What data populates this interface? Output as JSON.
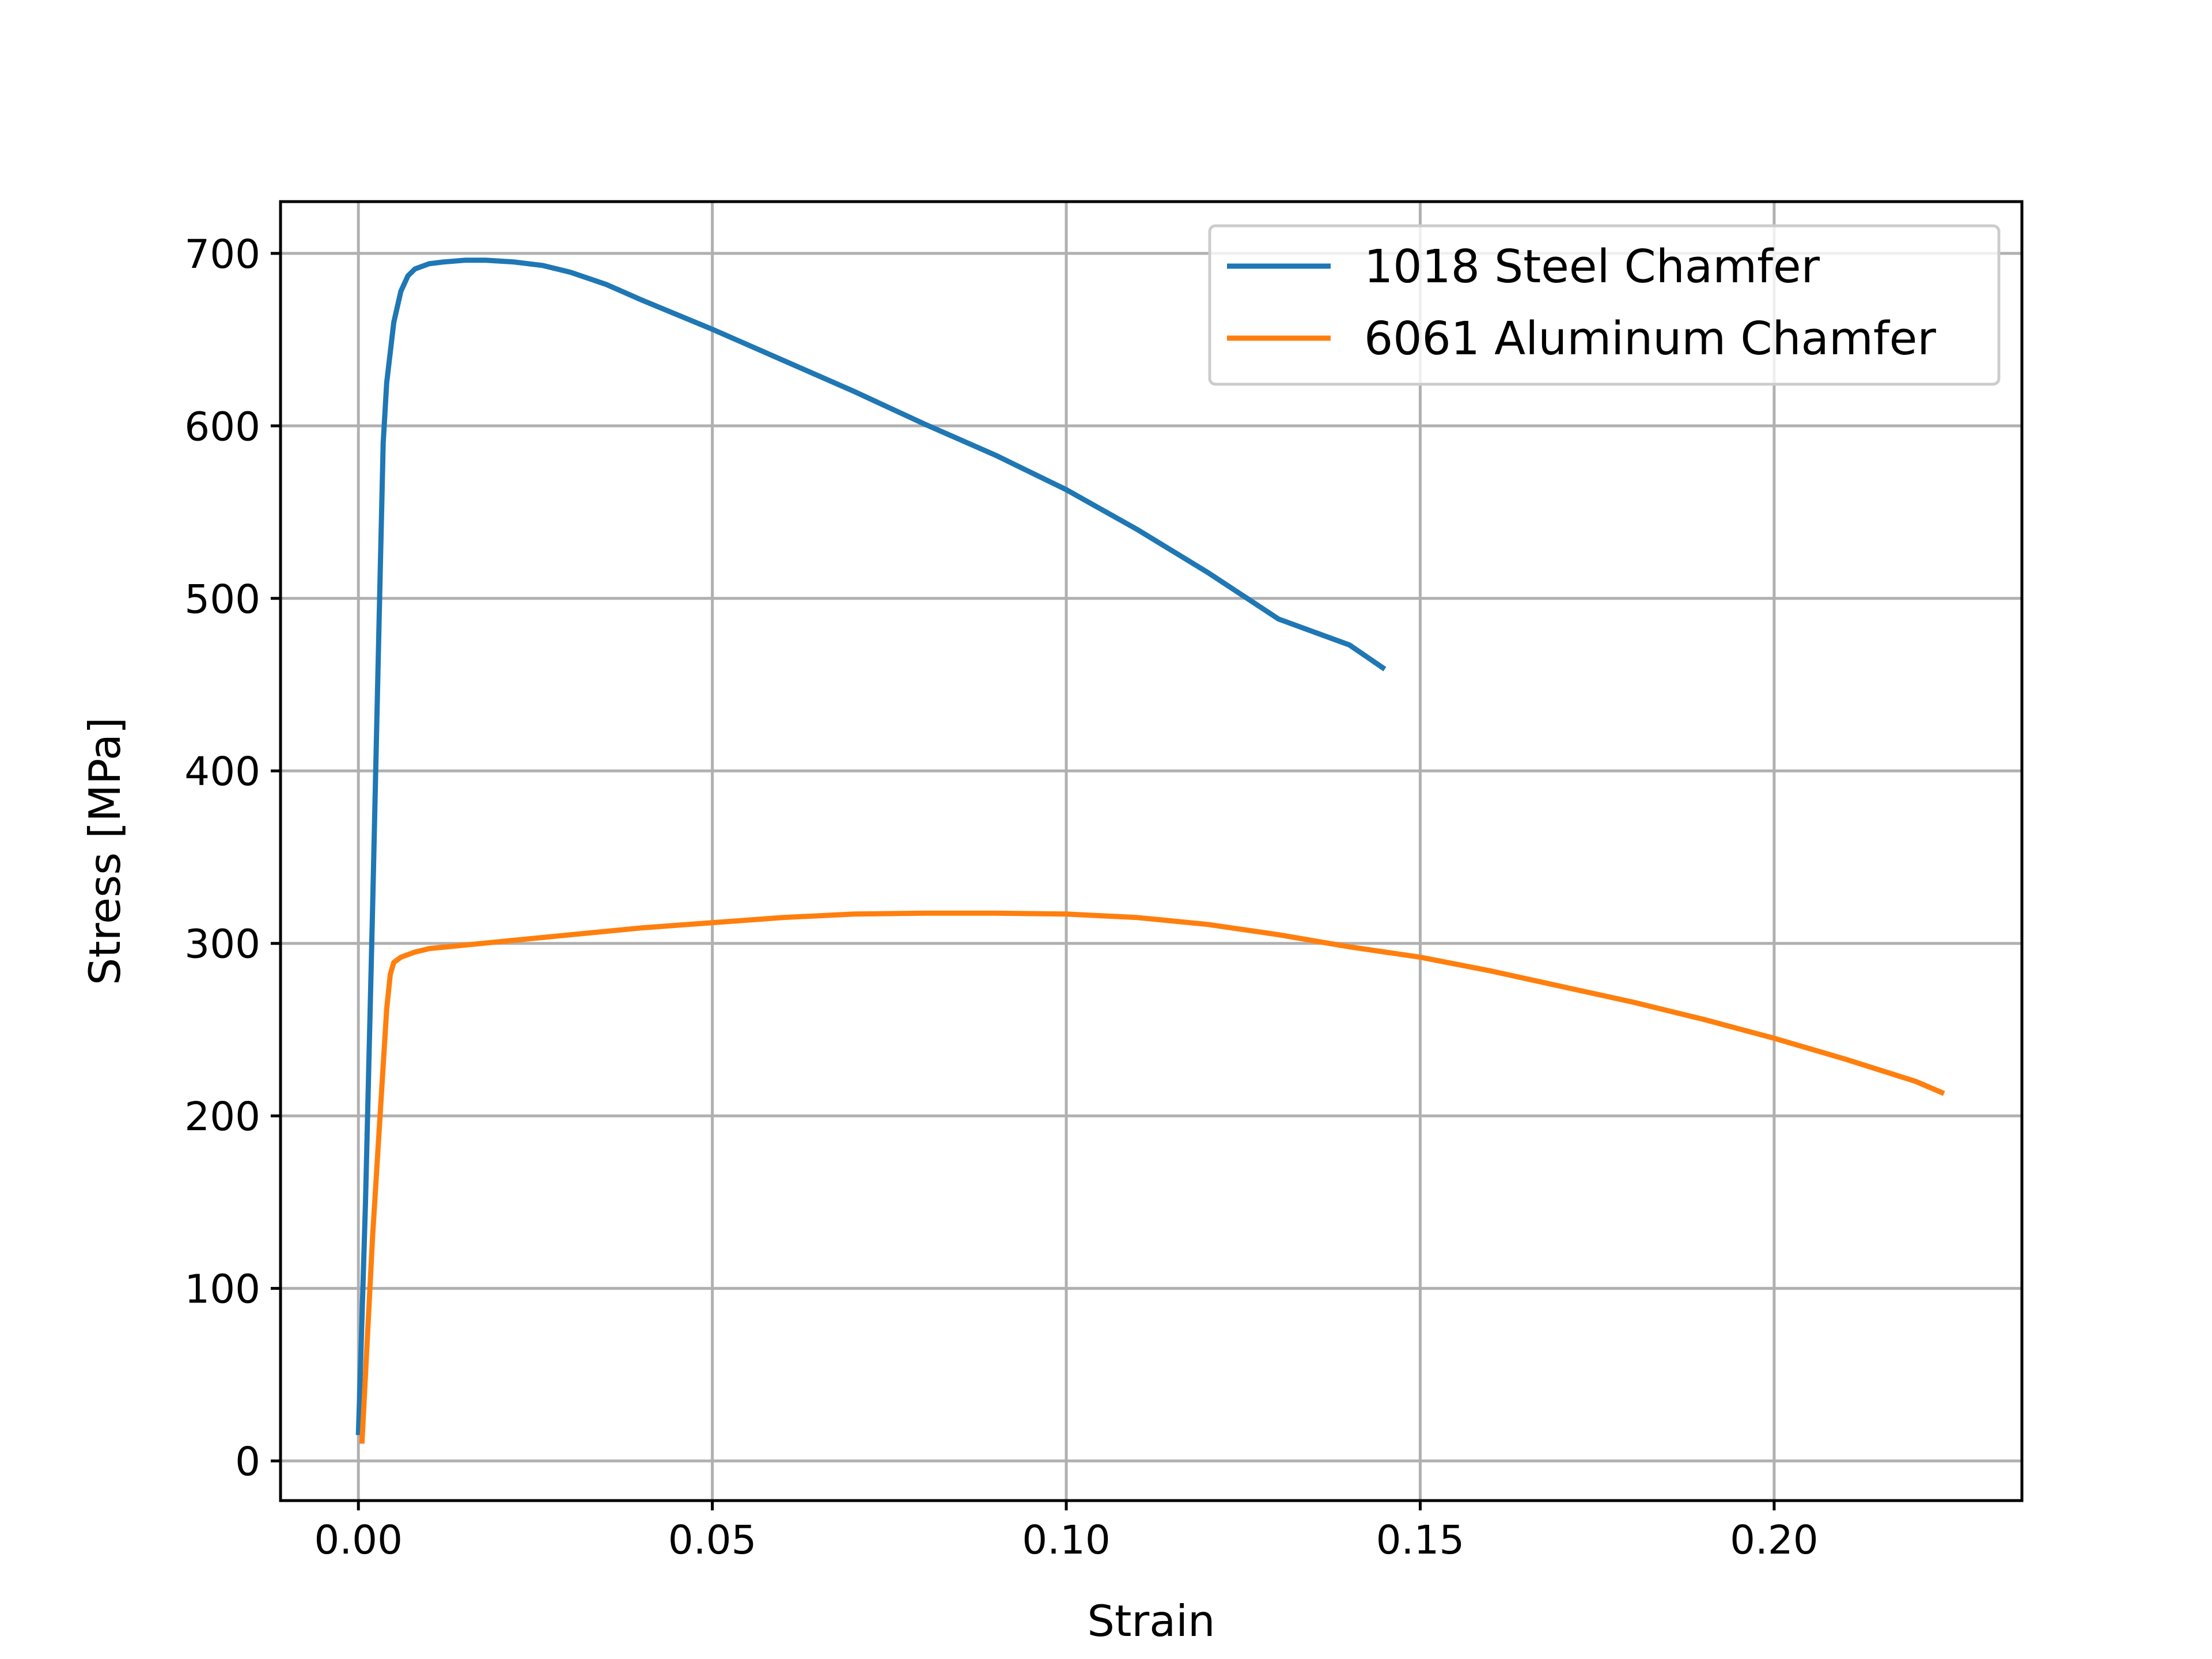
{
  "chart_data": {
    "type": "line",
    "xlabel": "Strain",
    "ylabel": "Stress [MPa]",
    "xlim": [
      -0.011,
      0.235
    ],
    "ylim": [
      -23,
      730
    ],
    "xticks": [
      0.0,
      0.05,
      0.1,
      0.15,
      0.2
    ],
    "xtick_labels": [
      "0.00",
      "0.05",
      "0.10",
      "0.15",
      "0.20"
    ],
    "yticks": [
      0,
      100,
      200,
      300,
      400,
      500,
      600,
      700
    ],
    "ytick_labels": [
      "0",
      "100",
      "200",
      "300",
      "400",
      "500",
      "600",
      "700"
    ],
    "grid": true,
    "legend_position": "top-right",
    "series": [
      {
        "name": "1018 Steel Chamfer",
        "color": "#1f77b4",
        "x": [
          0.0,
          0.001,
          0.002,
          0.003,
          0.0035,
          0.004,
          0.005,
          0.006,
          0.007,
          0.008,
          0.01,
          0.012,
          0.015,
          0.018,
          0.022,
          0.026,
          0.03,
          0.035,
          0.04,
          0.05,
          0.06,
          0.07,
          0.08,
          0.09,
          0.1,
          0.11,
          0.12,
          0.13,
          0.14,
          0.145
        ],
        "y": [
          15,
          150,
          320,
          500,
          590,
          625,
          660,
          678,
          687,
          691,
          694,
          695,
          696,
          696,
          695,
          693,
          689,
          682,
          673,
          656,
          638,
          620,
          601,
          583,
          563,
          540,
          515,
          488,
          473,
          459
        ]
      },
      {
        "name": "6061 Aluminum Chamfer",
        "color": "#ff7f0e",
        "x": [
          0.0005,
          0.002,
          0.004,
          0.0045,
          0.005,
          0.006,
          0.008,
          0.01,
          0.015,
          0.02,
          0.03,
          0.04,
          0.05,
          0.06,
          0.07,
          0.08,
          0.09,
          0.1,
          0.11,
          0.12,
          0.13,
          0.14,
          0.15,
          0.16,
          0.17,
          0.18,
          0.19,
          0.2,
          0.21,
          0.22,
          0.224
        ],
        "y": [
          10,
          130,
          262,
          282,
          289,
          292,
          295,
          297,
          299,
          301,
          305,
          309,
          312,
          315,
          317,
          317.5,
          317.5,
          317,
          315,
          311,
          305,
          298,
          292,
          284,
          275,
          266,
          256,
          245,
          233,
          220,
          213
        ]
      }
    ]
  }
}
